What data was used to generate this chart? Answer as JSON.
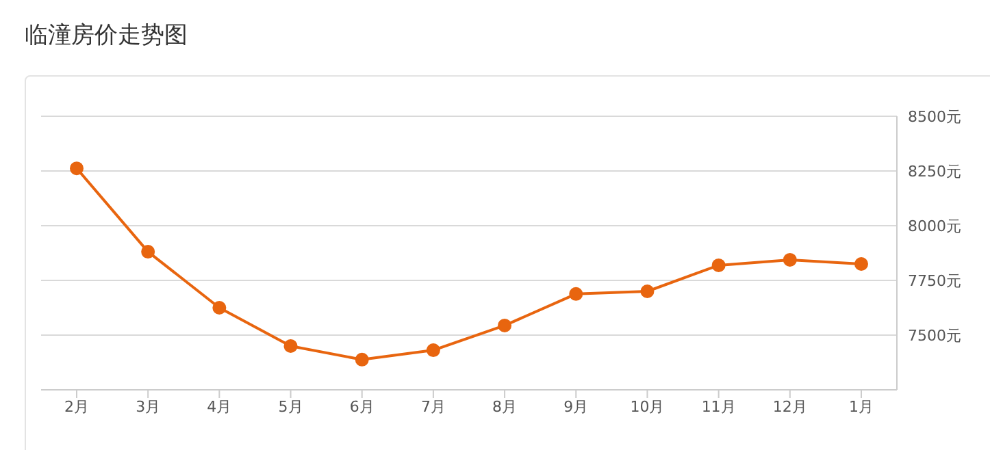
{
  "chart_data": {
    "type": "line",
    "title": "临潼房价走势图",
    "categories": [
      "2月",
      "3月",
      "4月",
      "5月",
      "6月",
      "7月",
      "8月",
      "9月",
      "10月",
      "11月",
      "12月",
      "1月"
    ],
    "series": [
      {
        "color": "#e8650f",
        "values": [
          8262,
          7881,
          7625,
          7450,
          7388,
          7431,
          7544,
          7688,
          7700,
          7819,
          7844,
          7825
        ]
      }
    ],
    "ylim": [
      7250,
      8500
    ],
    "yticks": [
      {
        "value": 7250,
        "label": null
      },
      {
        "value": 7500,
        "label": "7500元"
      },
      {
        "value": 7750,
        "label": "7750元"
      },
      {
        "value": 8000,
        "label": "8000元"
      },
      {
        "value": 8250,
        "label": "8250元"
      },
      {
        "value": 8500,
        "label": "8500元"
      }
    ],
    "grid": "y",
    "legend": false,
    "marker": "circle",
    "line_style": "solid"
  }
}
